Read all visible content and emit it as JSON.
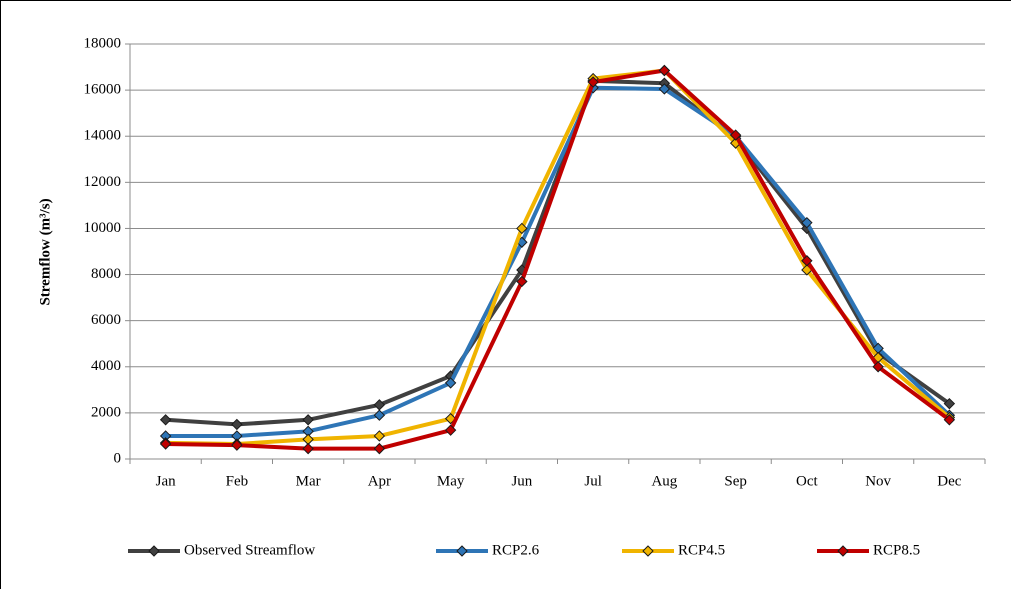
{
  "chart_data": {
    "type": "line",
    "y_label": "Stremflow (m³/s)",
    "categories": [
      "Jan",
      "Feb",
      "Mar",
      "Apr",
      "May",
      "Jun",
      "Jul",
      "Aug",
      "Sep",
      "Oct",
      "Nov",
      "Dec"
    ],
    "series": [
      {
        "name": "Observed Streamflow",
        "color": "#404040",
        "values": [
          1700,
          1500,
          1700,
          2350,
          3600,
          8200,
          16400,
          16300,
          13900,
          10000,
          4600,
          2400
        ]
      },
      {
        "name": "RCP2.6",
        "color": "#2e75b6",
        "values": [
          1000,
          1000,
          1200,
          1900,
          3300,
          9400,
          16100,
          16050,
          14000,
          10250,
          4800,
          1900
        ]
      },
      {
        "name": "RCP4.5",
        "color": "#f0b400",
        "values": [
          700,
          650,
          850,
          1000,
          1750,
          10000,
          16500,
          16850,
          13700,
          8200,
          4400,
          1800
        ]
      },
      {
        "name": "RCP8.5",
        "color": "#c00000",
        "values": [
          650,
          600,
          450,
          450,
          1250,
          7700,
          16350,
          16850,
          14050,
          8600,
          4000,
          1700
        ]
      }
    ],
    "ylim": [
      0,
      18000
    ],
    "yticks": [
      0,
      2000,
      4000,
      6000,
      8000,
      10000,
      12000,
      14000,
      16000,
      18000
    ],
    "grid": true
  }
}
